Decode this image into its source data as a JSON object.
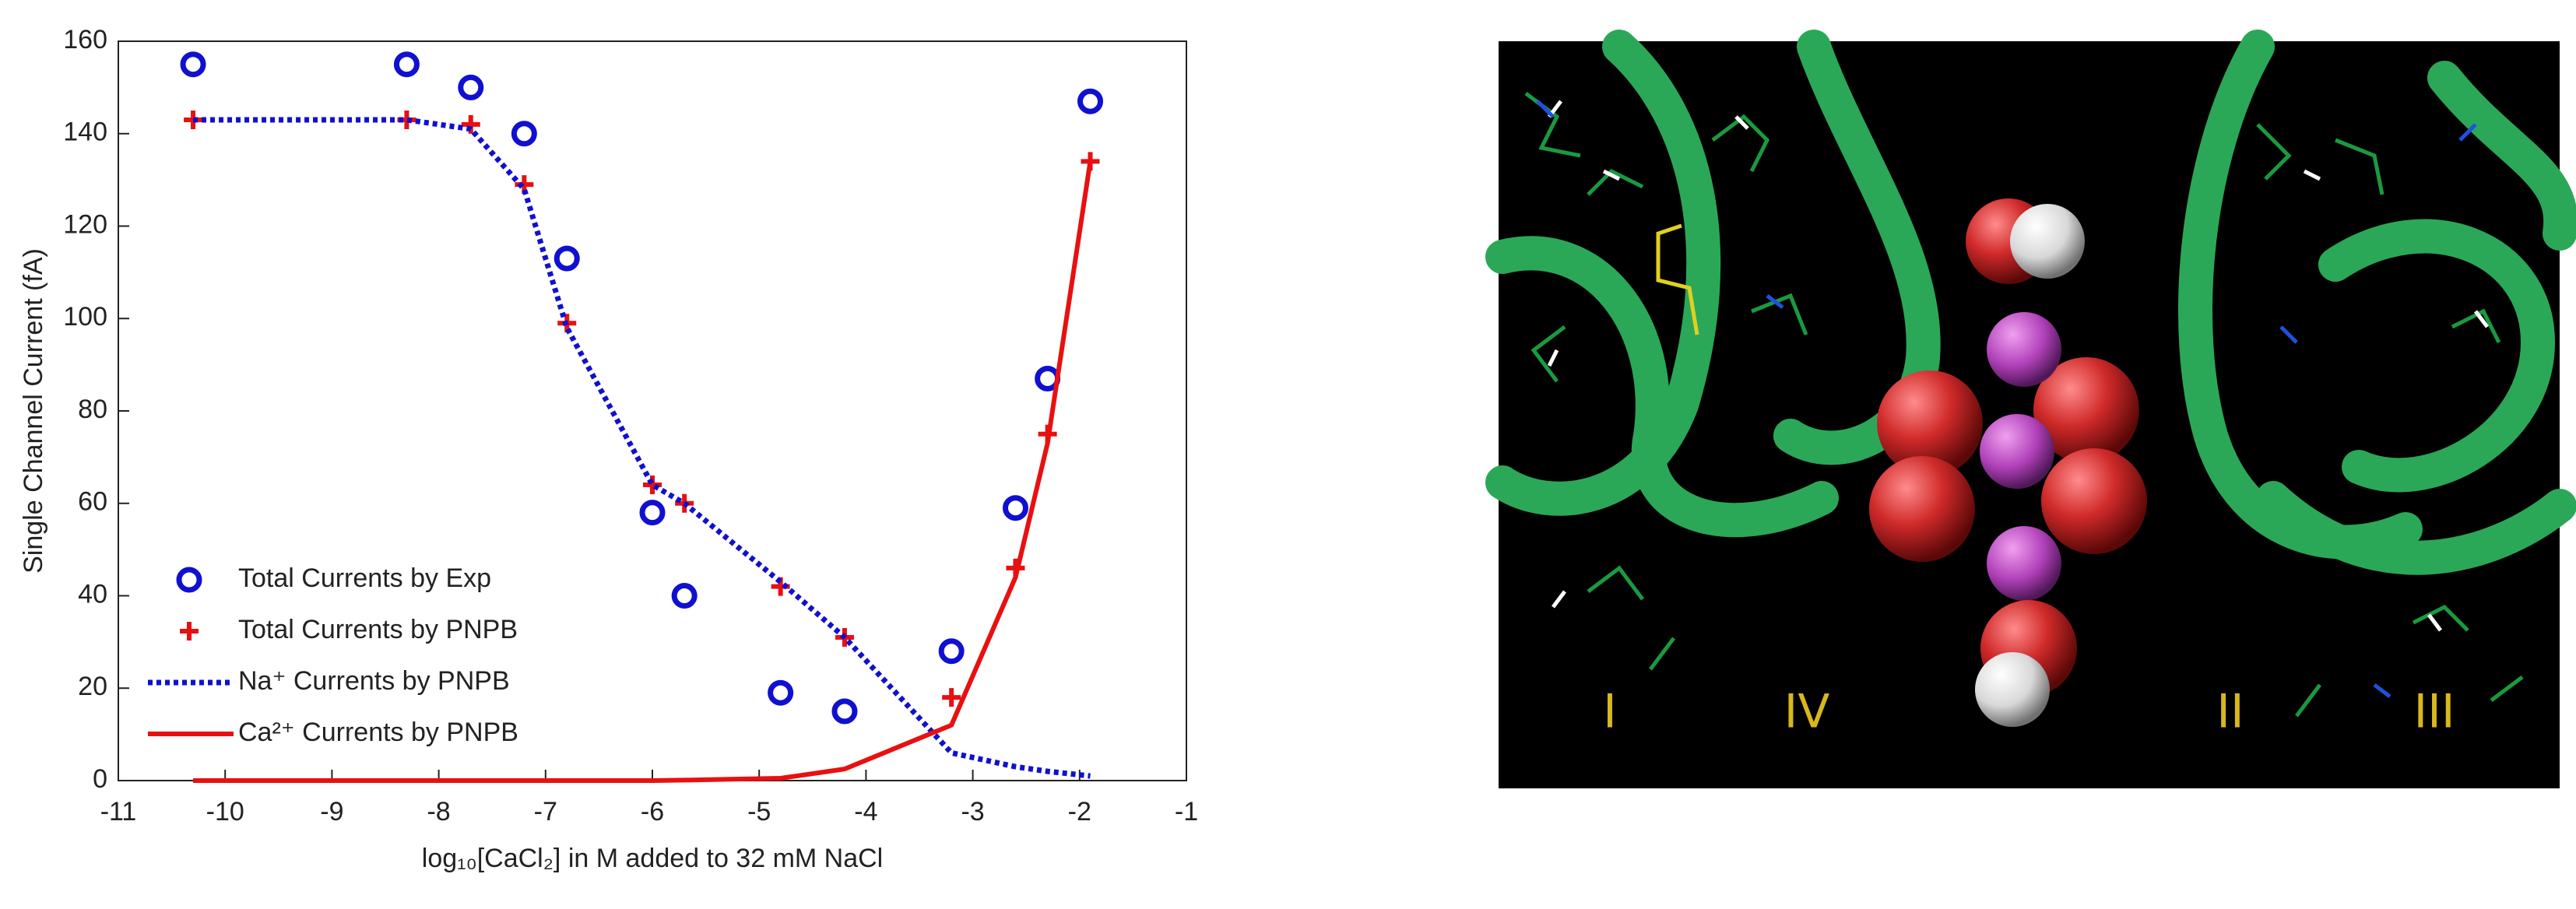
{
  "chart_data": {
    "type": "line",
    "xlabel": "log₁₀[CaCl₂] in M added to 32 mM NaCl",
    "ylabel": "Single Channel Current (fA)",
    "x": [
      -10.3,
      -8.3,
      -7.7,
      -7.2,
      -6.8,
      -6.0,
      -5.7,
      -4.8,
      -4.2,
      -3.2,
      -2.6,
      -2.3,
      -1.9
    ],
    "series": [
      {
        "name": "Total Currents by Exp",
        "color": "#1010d0",
        "mark": "circle",
        "values": [
          155,
          155,
          150,
          140,
          113,
          58,
          40,
          19,
          15,
          28,
          59,
          87,
          147
        ]
      },
      {
        "name": "Total Currents by PNPB",
        "color": "#e81010",
        "mark": "plus",
        "values": [
          143,
          143,
          142,
          129,
          99,
          64,
          60,
          42,
          31,
          18,
          46,
          75,
          134
        ]
      },
      {
        "name": "Na⁺ Currents by PNPB",
        "color": "#1010d0",
        "mark": "dotted-line",
        "values": [
          143,
          143,
          141,
          128,
          98,
          64,
          60,
          43,
          31,
          6,
          3,
          2,
          1
        ]
      },
      {
        "name": "Ca²⁺ Currents by PNPB",
        "color": "#e81010",
        "mark": "solid-line",
        "values": [
          0,
          0,
          0,
          0,
          0,
          0,
          0.1,
          0.5,
          2.5,
          12,
          44,
          73,
          134
        ]
      }
    ],
    "xlim": [
      -11,
      -1
    ],
    "xticks": [
      -11,
      -10,
      -9,
      -8,
      -7,
      -6,
      -5,
      -4,
      -3,
      -2,
      -1
    ],
    "ylim": [
      0,
      160
    ],
    "yticks": [
      0,
      20,
      40,
      60,
      80,
      100,
      120,
      140,
      160
    ],
    "legend": "lower-left"
  },
  "image": {
    "labels": [
      "I",
      "IV",
      "II",
      "III"
    ]
  }
}
